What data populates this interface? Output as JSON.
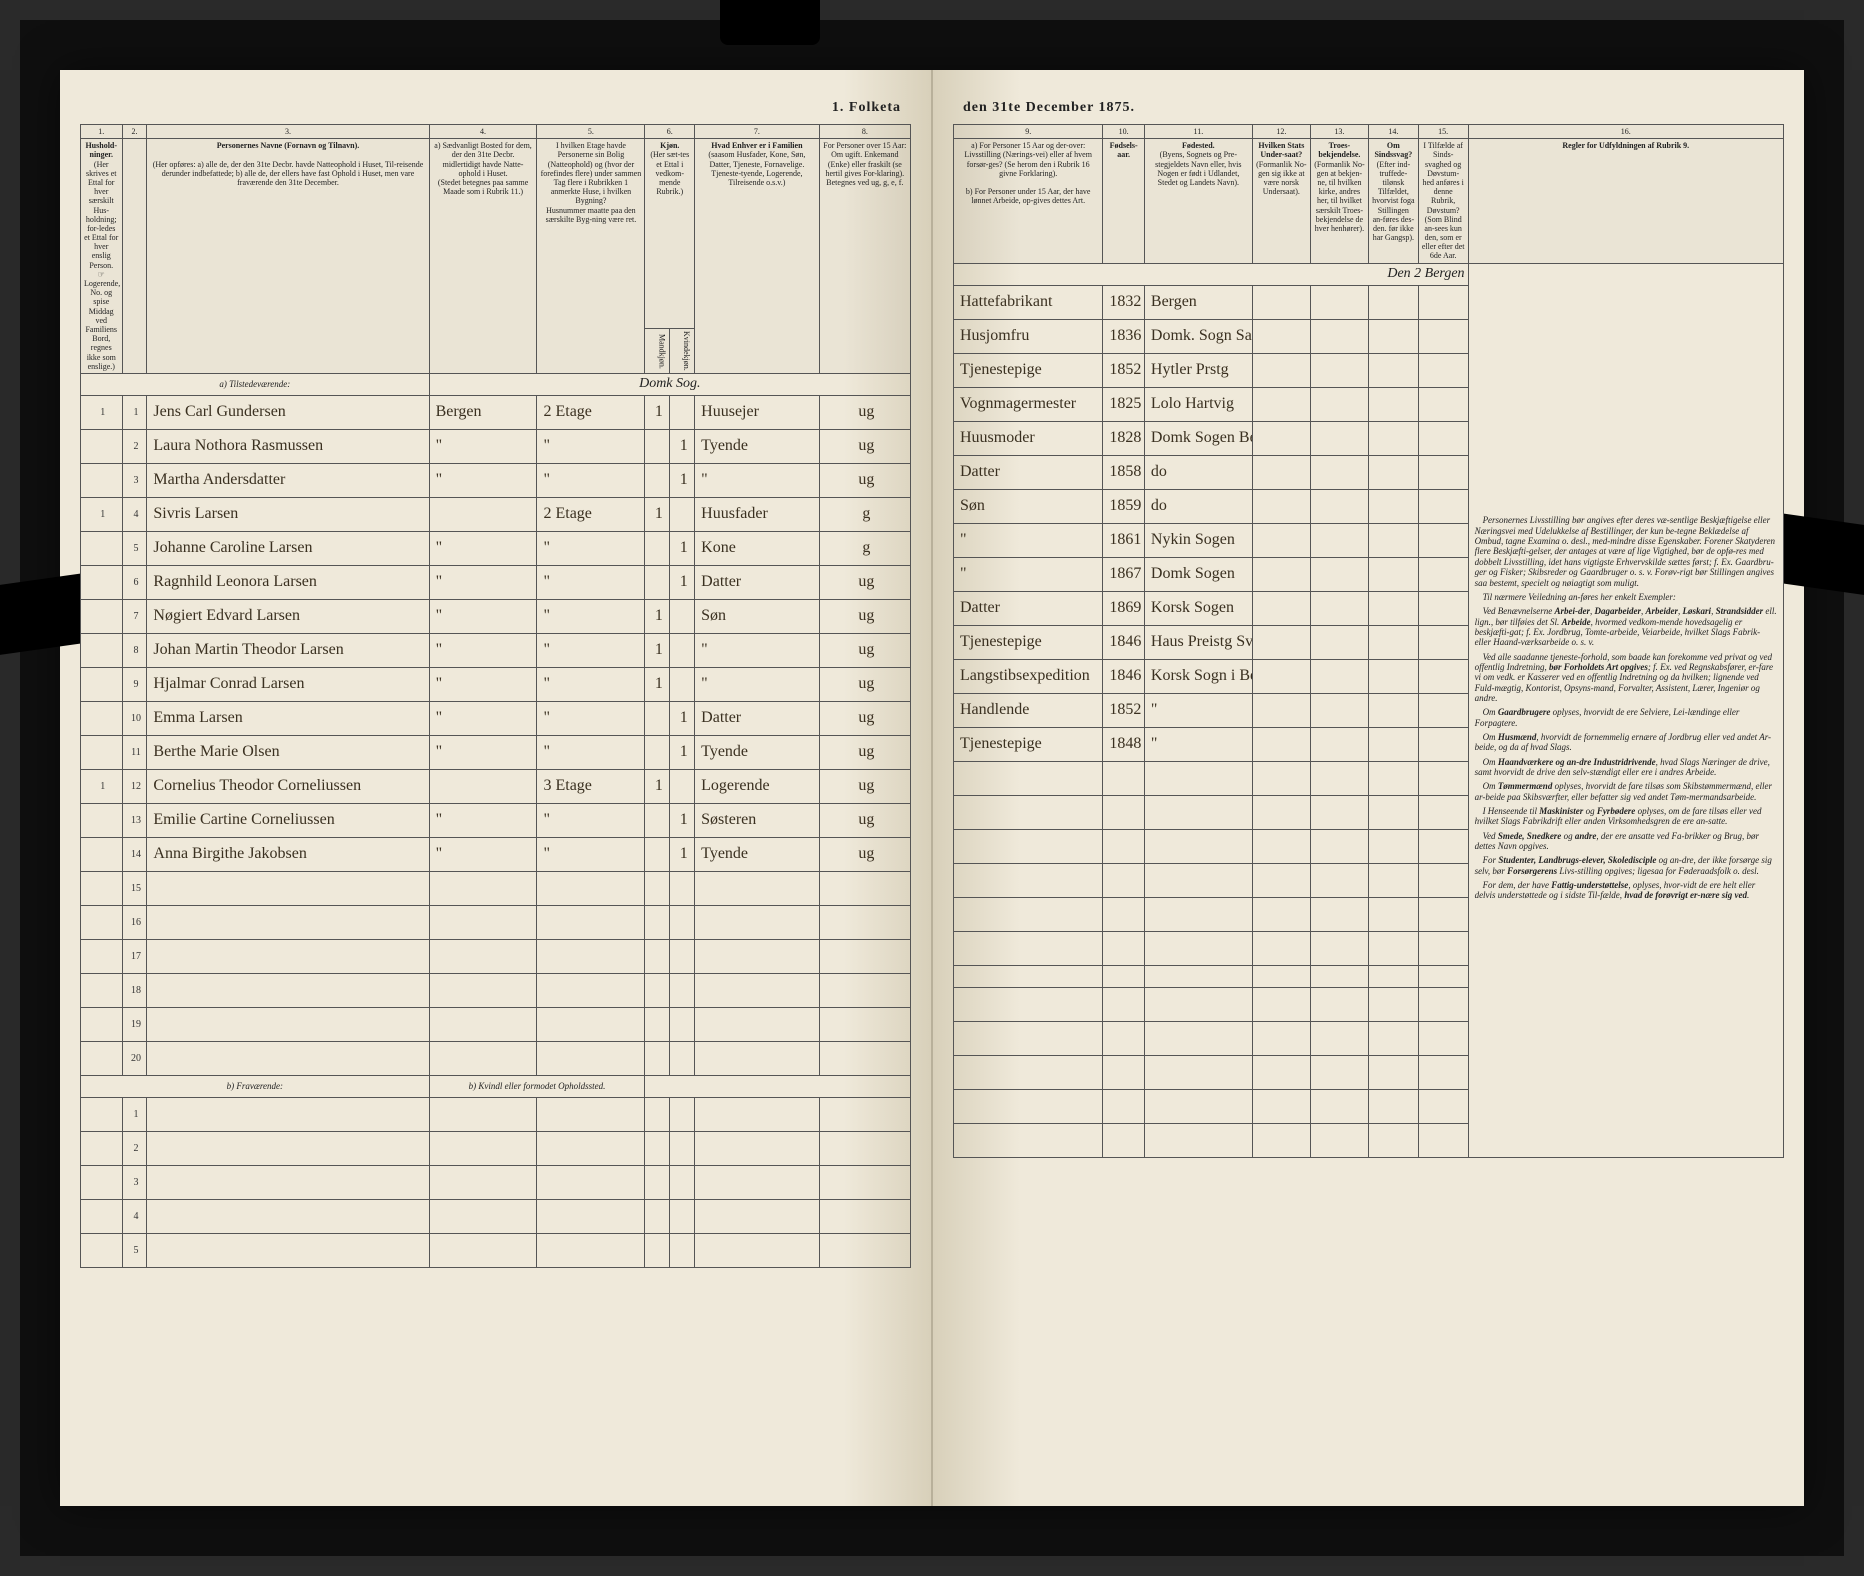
{
  "title_left": "1. Folketa",
  "title_right": "den 31te December 1875.",
  "columns_left": {
    "c1": "1.",
    "c2": "2.",
    "c3": "3.",
    "c4": "4.",
    "c5": "5.",
    "c6": "6.",
    "c7": "7.",
    "c8": "8."
  },
  "columns_right": {
    "c9": "9.",
    "c10": "10.",
    "c11": "11.",
    "c12": "12.",
    "c13": "13.",
    "c14": "14.",
    "c15": "15.",
    "c16": "16."
  },
  "headers_left": {
    "h1": "Hushold-\nninger.",
    "h1_sub": "(Her skrives et Ettal for hver særskilt Hus-holdning; for-ledes et Ettal for hver enslig Person.",
    "h1_note": "☞ Logerende, No. og spise Middag ved Familiens Bord, regnes ikke som enslige.)",
    "h3": "Personernes Navne (Fornavn og Tilnavn).",
    "h3_sub": "(Her opføres:\na) alle de, der den 31te Decbr. havde Natteophold i Huset, Til-reisende derunder indbefattede;\nb) alle de, der ellers have fast Ophold i Huset, men vare fraværende den 31te December.",
    "h4": "a) Sædvanligt Bosted for dem, der den 31te Decbr. midlertidigt havde Natte-ophold i Huset.",
    "h4_sub": "(Stedet betegnes paa samme Maade som i Rubrik 11.)",
    "h5": "I hvilken Etage havde Personerne sin Bolig (Natteophold) og (hvor der forefindes flere) under sammen Tag flere i Rubrikken 1 anmerkte Huse, i hvilken Bygning?",
    "h5_sub": "Husnummer maatte paa den særskilte Byg-ning være ret.",
    "h6": "Kjøn.",
    "h6_sub": "(Her sæt-tes et Ettal i vedkom-mende Rubrik.)",
    "h6a": "Mandkjøn.",
    "h6b": "Kvindekjøn.",
    "h7": "Hvad Enhver er i Familien",
    "h7_sub": "(saasom Husfader, Kone, Søn, Datter, Tjeneste, Fornavelige. Tjeneste-tyende, Logerende, Tilreisende o.s.v.)",
    "h8": "For Personer over 15 Aar: Om ugift. Enkemand (Enke) eller fraskilt (se hertil gives For-klaring).",
    "h8_sub": "Betegnes ved ug, g, e, f."
  },
  "headers_right": {
    "h9a": "a) For Personer 15 Aar og der-over: Livsstilling (Nærings-vei) eller af hvem forsør-ges? (Se herom den i Rubrik 16 givne Forklaring).",
    "h9b": "b) For Personer under 15 Aar, der have lønnet Arbeide, op-gives dettes Art.",
    "h10": "Fødsels-\naar.",
    "h11": "Fødested.",
    "h11_sub": "(Byens, Sognets og Pre-stegjeldets Navn eller, hvis Nogen er født i Udlandet, Stedet og Landets Navn).",
    "h12": "Hvilken Stats Under-saat?",
    "h12_sub": "(Formanlik No-gen sig ikke at være norsk Undersaat).",
    "h13": "Troes-bekjendelse.",
    "h13_sub": "(Formanlik No-gen at bekjen-ne, til hvilken kirke, andres her, til hvilket særskilt Troes-bekjendelse de hver henhører).",
    "h14": "Om Sindssvag?",
    "h14_sub": "(Efter ind-truffede-tilønsk Tilfældet, hvorvist foga Stillingen an-føres des-den. før ikke har Gangsp).",
    "h15": "I Tilfælde af Sinds-svaghed og Døvstum-hed anføres i denne Rubrik,",
    "h15_sub": "Døvstum? (Som Blind an-sees kun den, som er eller efter det 6de Aar.",
    "h16_title": "Regler for Udfyldningen\naf\nRubrik 9."
  },
  "section_a": "a) Tilstedeværende:",
  "section_b": "b) Fraværende:",
  "section_b_col": "b) Kvindl eller formodet Opholdssted.",
  "rows": [
    {
      "n1": "1",
      "n2": "1",
      "name": "Jens Carl Gundersen",
      "c4": "Bergen",
      "c5": "2 Etage",
      "c6": "1",
      "c6b": "",
      "c7": "Huusejer",
      "c8": "ug",
      "c9": "Hattefabrikant",
      "c10": "1832",
      "c11": "Bergen"
    },
    {
      "n1": "",
      "n2": "2",
      "name": "Laura Nothora Rasmussen",
      "c4": "\"",
      "c5": "\"",
      "c6": "",
      "c6b": "1",
      "c7": "Tyende",
      "c8": "ug",
      "c9": "Husjomfru",
      "c10": "1836",
      "c11": "Domk. Sogn Sandekund"
    },
    {
      "n1": "",
      "n2": "3",
      "name": "Martha Andersdatter",
      "c4": "\"",
      "c5": "\"",
      "c6": "",
      "c6b": "1",
      "c7": "\"",
      "c8": "ug",
      "c9": "Tjenestepige",
      "c10": "1852",
      "c11": "Hytler Prstg"
    },
    {
      "n1": "1",
      "n2": "4",
      "name": "Sivris Larsen",
      "c4": "",
      "c5": "2 Etage",
      "c6": "1",
      "c6b": "",
      "c7": "Huusfader",
      "c8": "g",
      "c9": "Vognmagermester",
      "c10": "1825",
      "c11": "Lolo Hartvig"
    },
    {
      "n1": "",
      "n2": "5",
      "name": "Johanne Caroline Larsen",
      "c4": "\"",
      "c5": "\"",
      "c6": "",
      "c6b": "1",
      "c7": "Kone",
      "c8": "g",
      "c9": "Huusmoder",
      "c10": "1828",
      "c11": "Domk Sogen Bergen"
    },
    {
      "n1": "",
      "n2": "6",
      "name": "Ragnhild Leonora Larsen",
      "c4": "\"",
      "c5": "\"",
      "c6": "",
      "c6b": "1",
      "c7": "Datter",
      "c8": "ug",
      "c9": "Datter",
      "c10": "1858",
      "c11": "do"
    },
    {
      "n1": "",
      "n2": "7",
      "name": "Nøgiert Edvard Larsen",
      "c4": "\"",
      "c5": "\"",
      "c6": "1",
      "c6b": "",
      "c7": "Søn",
      "c8": "ug",
      "c9": "Søn",
      "c10": "1859",
      "c11": "do"
    },
    {
      "n1": "",
      "n2": "8",
      "name": "Johan Martin Theodor Larsen",
      "c4": "\"",
      "c5": "\"",
      "c6": "1",
      "c6b": "",
      "c7": "\"",
      "c8": "ug",
      "c9": "\"",
      "c10": "1861",
      "c11": "Nykin Sogen"
    },
    {
      "n1": "",
      "n2": "9",
      "name": "Hjalmar Conrad Larsen",
      "c4": "\"",
      "c5": "\"",
      "c6": "1",
      "c6b": "",
      "c7": "\"",
      "c8": "ug",
      "c9": "\"",
      "c10": "1867",
      "c11": "Domk Sogen"
    },
    {
      "n1": "",
      "n2": "10",
      "name": "Emma Larsen",
      "c4": "\"",
      "c5": "\"",
      "c6": "",
      "c6b": "1",
      "c7": "Datter",
      "c8": "ug",
      "c9": "Datter",
      "c10": "1869",
      "c11": "Korsk Sogen"
    },
    {
      "n1": "",
      "n2": "11",
      "name": "Berthe Marie Olsen",
      "c4": "\"",
      "c5": "\"",
      "c6": "",
      "c6b": "1",
      "c7": "Tyende",
      "c8": "ug",
      "c9": "Tjenestepige",
      "c10": "1846",
      "c11": "Haus Preistg Svang Sogen"
    },
    {
      "n1": "1",
      "n2": "12",
      "name": "Cornelius Theodor Corneliussen",
      "c4": "",
      "c5": "3 Etage",
      "c6": "1",
      "c6b": "",
      "c7": "Logerende",
      "c8": "ug",
      "c9": "Langstibsexpedition",
      "c10": "1846",
      "c11": "Korsk Sogn i Bergen"
    },
    {
      "n1": "",
      "n2": "13",
      "name": "Emilie Cartine Corneliussen",
      "c4": "\"",
      "c5": "\"",
      "c6": "",
      "c6b": "1",
      "c7": "Søsteren",
      "c8": "ug",
      "c9": "Handlende",
      "c10": "1852",
      "c11": "\""
    },
    {
      "n1": "",
      "n2": "14",
      "name": "Anna Birgithe Jakobsen",
      "c4": "\"",
      "c5": "\"",
      "c6": "",
      "c6b": "1",
      "c7": "Tyende",
      "c8": "ug",
      "c9": "Tjenestepige",
      "c10": "1848",
      "c11": "\""
    }
  ],
  "empty_rows_a": [
    "15",
    "16",
    "17",
    "18",
    "19",
    "20"
  ],
  "empty_rows_b": [
    "1",
    "2",
    "3",
    "4",
    "5"
  ],
  "handwritten_note": "Den 2 Bergen",
  "rules_text": [
    "Personernes Livsstilling bør angives efter deres væ-sentlige Beskjæftigelse eller Næringsvei med Udelukkelse af Bestillinger, der kun be-tegne Beklædelse af Ombud, tagne Examina o. desl., med-mindre disse Egenskaber. Forener Skatyderen flere Beskjæfti-gelser, der antages at være af lige Vigtighed, bør de opfø-res med dobbelt Livsstilling, idet hans vigtigste Erhvervskilde sættes først; f. Ex. Gaardbru-ger og Fisker; Skibsreder og Gaardbruger o. s. v.  Forøv-rigt bør Stillingen angives saa bestemt, specielt og nøiagtigt som muligt.",
    "Til nærmere Veiledning an-føres her enkelt Exempler:",
    "Ved Benævnelserne <b>Arbei-der</b>, <b>Dagarbeider</b>, <b>Arbeider</b>, <b>Løskari</b>, <b>Strandsidder</b> ell. lign., bør tilføies det Sl. <b>Arbeide</b>, hvormed vedkom-mende hovedsagelig er beskjæfti-gat; f. Ex. Jordbrug, Tomte-arbeide, Veiarbeide, hvilket Slags Fabrik- eller Haand-værksarbeide o. s. v.",
    "Ved alle saadanne tjeneste-forhold, som baade kan forekomme ved privat og ved offentlig Indretning, <b>bør Forholdets Art opgives</b>; f. Ex. ved Regnskabsfører, er-fare vi om vedk. er Kasserer ved en offentlig Indretning og da hvilken; lignende ved Fuld-mægtig, Kontorist, Opsyns-mand, Forvalter, Assistent, Lærer, Ingeniør og andre.",
    "Om <b>Gaardbrugere</b> oplyses, hvorvidt de ere Selviere, Lei-lændinge eller Forpagtere.",
    "Om <b>Husmænd</b>, hvorvidt de fornemmelig ernære af Jordbrug eller ved andet Ar-beide, og da af hvad Slags.",
    "Om <b>Haandværkere og an-dre Industridrivende</b>, hvad Slags Næringer de drive, samt hvorvidt de drive den selv-stændigt eller ere i andres Arbeide.",
    "Om <b>Tømmermænd</b> oplyses, hvorvidt de fare tilsøs som Skibstømmermænd, eller ar-beide paa Skibsværfter, eller befatter sig ved andet Tøm-mermandsarbeide.",
    "I Henseende til <b>Maskinister</b> og <b>Fyrbødere</b> oplyses, om de fare tilsøs eller ved hvilket Slags Fabrikdrift eller anden Virksomhedsgren de ere an-satte.",
    "Ved <b>Smede, Snedkere</b> og <b>andre</b>, der ere ansatte ved Fa-brikker og Brug, bør dettes Navn opgives.",
    "For <b>Studenter, Landbrugs-elever, Skoledisciple</b> og an-dre, der ikke forsørge sig selv, bør <b>Forsørgerens</b> Livs-stilling opgives; ligesaa for Føderaadsfolk o. desl.",
    "For dem, der have <b>Fattig-understøttelse</b>, oplyses, hvor-vidt de ere helt eller delvis understøttede og i sidste Til-fælde, <b>hvad de forøvrigt er-nære sig ved</b>."
  ]
}
